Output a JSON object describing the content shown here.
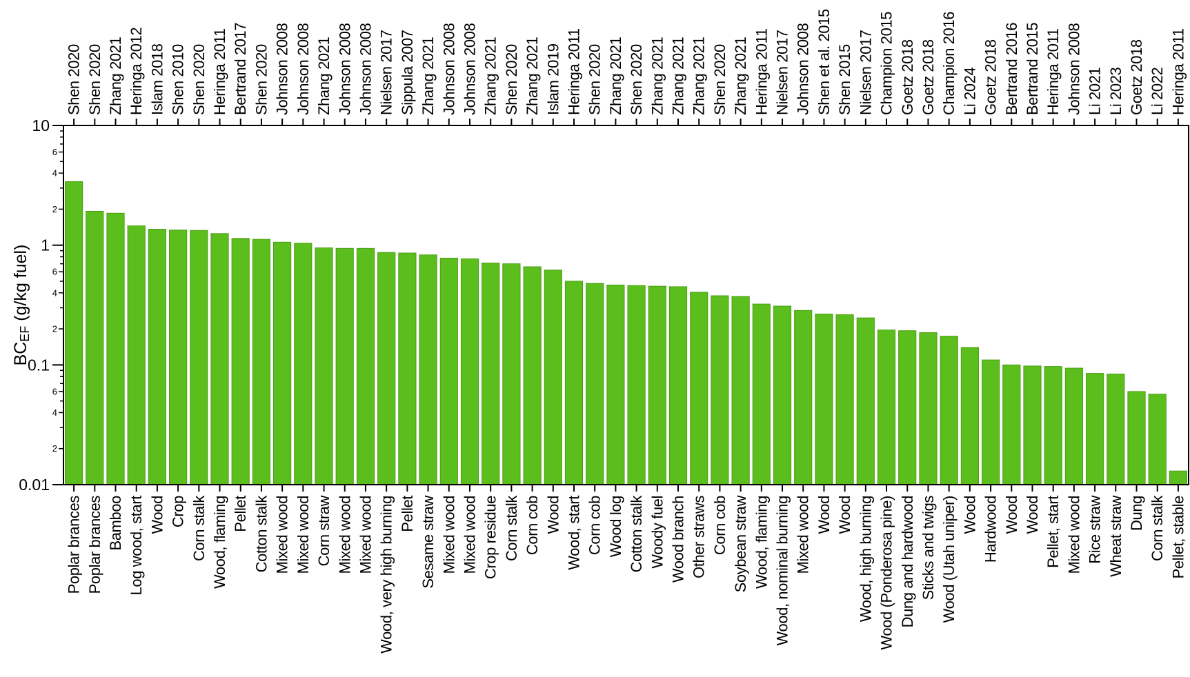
{
  "figure": {
    "background": "#ffffff",
    "description": "Sorted bar chart of black carbon emission factors (BC_EF) for solid fuel combustion, log y-axis, study citation labels on top axis and fuel type labels on bottom axis"
  },
  "chart_data": {
    "type": "bar",
    "title": "",
    "xlabel": "",
    "ylabel_prefix": "BC",
    "ylabel_subscript": "EF",
    "ylabel_suffix": " (g/kg fuel)",
    "y_scale": "log",
    "ylim": [
      0.01,
      10
    ],
    "grid": false,
    "legend": "none",
    "bar_color": "#5cbe1c",
    "bar_edge_color": "#4a9e15",
    "axis_color": "#000000",
    "y_major_ticks": [
      {
        "value": 10,
        "label": "10"
      },
      {
        "value": 1,
        "label": "1"
      },
      {
        "value": 0.1,
        "label": "0.1"
      },
      {
        "value": 0.01,
        "label": "0.01"
      }
    ],
    "y_minor_mantissas": [
      9,
      8,
      7,
      6,
      5,
      4,
      3,
      2
    ],
    "y_minor_labeled_mantissas": [
      6,
      4,
      2
    ],
    "bars": [
      {
        "study": "Shen 2020",
        "fuel": "Poplar brances",
        "value": 3.4
      },
      {
        "study": "Shen 2020",
        "fuel": "Poplar brances",
        "value": 1.92
      },
      {
        "study": "Zhang 2021",
        "fuel": "Bamboo",
        "value": 1.85
      },
      {
        "study": "Heringa 2012",
        "fuel": "Log wood, start",
        "value": 1.45
      },
      {
        "study": "Islam 2018",
        "fuel": "Wood",
        "value": 1.36
      },
      {
        "study": "Shen 2010",
        "fuel": "Crop",
        "value": 1.34
      },
      {
        "study": "Shen 2020",
        "fuel": "Corn stalk",
        "value": 1.33
      },
      {
        "study": "Heringa 2011",
        "fuel": "Wood, flaming",
        "value": 1.25
      },
      {
        "study": "Bertrand 2017",
        "fuel": "Pellet",
        "value": 1.14
      },
      {
        "study": "Shen 2020",
        "fuel": "Cotton stalk",
        "value": 1.12
      },
      {
        "study": "Johnson 2008",
        "fuel": "Mixed wood",
        "value": 1.06
      },
      {
        "study": "Johnson 2008",
        "fuel": "Mixed wood",
        "value": 1.04
      },
      {
        "study": "Zhang 2021",
        "fuel": "Corn straw",
        "value": 0.95
      },
      {
        "study": "Johnson 2008",
        "fuel": "Mixed wood",
        "value": 0.94
      },
      {
        "study": "Johnson 2008",
        "fuel": "Mixed wood",
        "value": 0.94
      },
      {
        "study": "Nielsen 2017",
        "fuel": "Wood, very high burning",
        "value": 0.87
      },
      {
        "study": "Sippula 2007",
        "fuel": "Pellet",
        "value": 0.86
      },
      {
        "study": "Zhang 2021",
        "fuel": "Sesame straw",
        "value": 0.83
      },
      {
        "study": "Johnson 2008",
        "fuel": "Mixed wood",
        "value": 0.78
      },
      {
        "study": "Johnson 2008",
        "fuel": "Mixed wood",
        "value": 0.77
      },
      {
        "study": "Zhang 2021",
        "fuel": "Crop residue",
        "value": 0.71
      },
      {
        "study": "Shen 2020",
        "fuel": "Corn stalk",
        "value": 0.7
      },
      {
        "study": "Zhang 2021",
        "fuel": "Corn cob",
        "value": 0.66
      },
      {
        "study": "Islam 2019",
        "fuel": "Wood",
        "value": 0.62
      },
      {
        "study": "Heringa 2011",
        "fuel": "Wood, start",
        "value": 0.5
      },
      {
        "study": "Shen 2020",
        "fuel": "Corn cob",
        "value": 0.48
      },
      {
        "study": "Zhang 2021",
        "fuel": "Wood log",
        "value": 0.465
      },
      {
        "study": "Shen 2020",
        "fuel": "Cotton stalk",
        "value": 0.46
      },
      {
        "study": "Zhang 2021",
        "fuel": "Woody fuel",
        "value": 0.455
      },
      {
        "study": "Zhang 2021",
        "fuel": "Wood branch",
        "value": 0.45
      },
      {
        "study": "Zhang 2021",
        "fuel": "Other straws",
        "value": 0.405
      },
      {
        "study": "Shen 2020",
        "fuel": "Corn cob",
        "value": 0.378
      },
      {
        "study": "Zhang 2021",
        "fuel": "Soybean straw",
        "value": 0.373
      },
      {
        "study": "Heringa 2011",
        "fuel": "Wood, flaming",
        "value": 0.322
      },
      {
        "study": "Nielsen 2017",
        "fuel": "Wood, nominal burning",
        "value": 0.31
      },
      {
        "study": "Johnson 2008",
        "fuel": "Mixed wood",
        "value": 0.285
      },
      {
        "study": "Shen et al. 2015",
        "fuel": "Wood",
        "value": 0.266
      },
      {
        "study": "Shen 2015",
        "fuel": "Wood",
        "value": 0.263
      },
      {
        "study": "Nielsen 2017",
        "fuel": "Wood, high burning",
        "value": 0.247
      },
      {
        "study": "Champion 2015",
        "fuel": "Wood (Ponderosa pine)",
        "value": 0.196
      },
      {
        "study": "Goetz 2018",
        "fuel": "Dung and hardwood",
        "value": 0.193
      },
      {
        "study": "Goetz 2018",
        "fuel": "Sticks and twigs",
        "value": 0.186
      },
      {
        "study": "Champion 2016",
        "fuel": "Wood (Utah uniper)",
        "value": 0.174
      },
      {
        "study": "Li 2024",
        "fuel": "Wood",
        "value": 0.14
      },
      {
        "study": "Goetz 2018",
        "fuel": "Hardwood",
        "value": 0.11
      },
      {
        "study": "Bertrand 2016",
        "fuel": "Wood",
        "value": 0.1
      },
      {
        "study": "Bertrand 2015",
        "fuel": "Wood",
        "value": 0.098
      },
      {
        "study": "Heringa 2011",
        "fuel": "Pellet, start",
        "value": 0.097
      },
      {
        "study": "Johnson 2008",
        "fuel": "Mixed wood",
        "value": 0.094
      },
      {
        "study": "Li 2021",
        "fuel": "Rice straw",
        "value": 0.085
      },
      {
        "study": "Li 2023",
        "fuel": "Wheat straw",
        "value": 0.084
      },
      {
        "study": "Goetz 2018",
        "fuel": "Dung",
        "value": 0.06
      },
      {
        "study": "Li 2022",
        "fuel": "Corn stalk",
        "value": 0.057
      },
      {
        "study": "Heringa 2011",
        "fuel": "Pellet, stable",
        "value": 0.013
      }
    ]
  }
}
